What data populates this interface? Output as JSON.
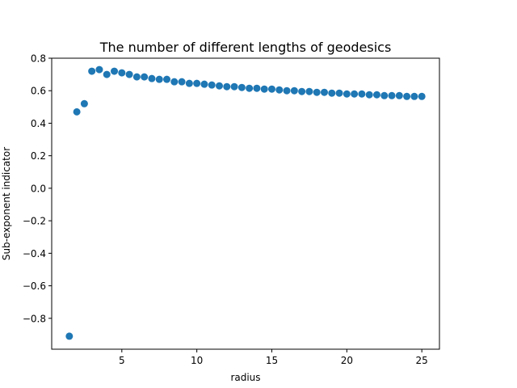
{
  "chart_data": {
    "type": "scatter",
    "title": "The number of different lengths of geodesics",
    "xlabel": "radius",
    "ylabel": "Sub-exponent indicator",
    "xlim": [
      0.325,
      26.175
    ],
    "ylim": [
      -0.99,
      0.8
    ],
    "xticks": [
      5,
      10,
      15,
      20,
      25
    ],
    "xtick_labels": [
      "5",
      "10",
      "15",
      "20",
      "25"
    ],
    "yticks": [
      -0.8,
      -0.6,
      -0.4,
      -0.2,
      0.0,
      0.2,
      0.4,
      0.6,
      0.8
    ],
    "ytick_labels": [
      "−0.8",
      "−0.6",
      "−0.4",
      "−0.2",
      "0.0",
      "0.2",
      "0.4",
      "0.6",
      "0.8"
    ],
    "grid": false,
    "marker_color": "#1f77b4",
    "series": [
      {
        "x": [
          1.5,
          2.0,
          2.5,
          3.0,
          3.5,
          4.0,
          4.5,
          5.0,
          5.5,
          6.0,
          6.5,
          7.0,
          7.5,
          8.0,
          8.5,
          9.0,
          9.5,
          10.0,
          10.5,
          11.0,
          11.5,
          12.0,
          12.5,
          13.0,
          13.5,
          14.0,
          14.5,
          15.0,
          15.5,
          16.0,
          16.5,
          17.0,
          17.5,
          18.0,
          18.5,
          19.0,
          19.5,
          20.0,
          20.5,
          21.0,
          21.5,
          22.0,
          22.5,
          23.0,
          23.5,
          24.0,
          24.5,
          25.0
        ],
        "y": [
          -0.91,
          0.47,
          0.52,
          0.72,
          0.73,
          0.7,
          0.72,
          0.71,
          0.7,
          0.685,
          0.685,
          0.675,
          0.67,
          0.67,
          0.655,
          0.655,
          0.645,
          0.645,
          0.64,
          0.635,
          0.63,
          0.625,
          0.625,
          0.62,
          0.615,
          0.615,
          0.61,
          0.61,
          0.605,
          0.6,
          0.6,
          0.595,
          0.595,
          0.59,
          0.59,
          0.585,
          0.585,
          0.58,
          0.58,
          0.58,
          0.575,
          0.575,
          0.57,
          0.57,
          0.57,
          0.565,
          0.565,
          0.565
        ]
      }
    ]
  }
}
